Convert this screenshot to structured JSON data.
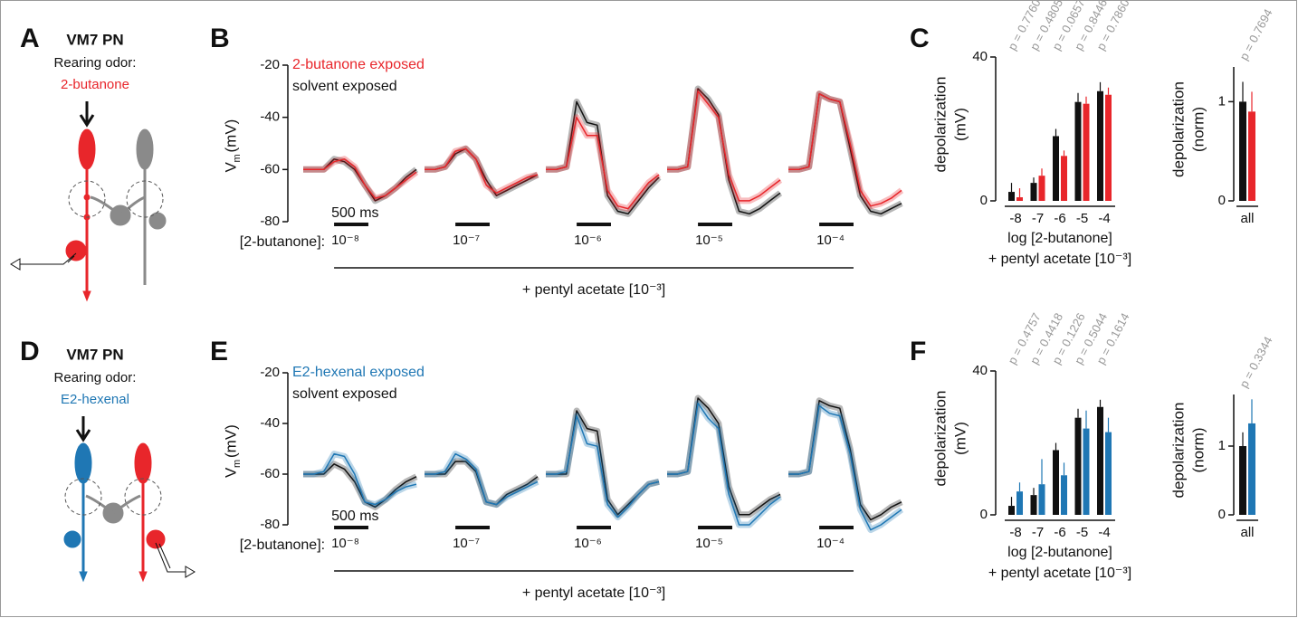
{
  "diagrams": [
    {
      "label": "A",
      "title": "VM7 PN",
      "subtitle": "Rearing odor:",
      "odor": "2-butanone",
      "odor_color": "#e8262b"
    },
    {
      "label": "D",
      "title": "VM7 PN",
      "subtitle": "Rearing odor:",
      "odor": "E2-hexenal",
      "odor_color": "#1f77b4"
    }
  ],
  "chart_data": [
    {
      "type": "trace",
      "panel_label": "B",
      "ylim": [
        -80,
        -20
      ],
      "yticks": [
        -20,
        -40,
        -60,
        -80
      ],
      "ylabel": "V",
      "ylabel_sub": "m",
      "ylabel_unit": "(mV)",
      "x": [
        0,
        150,
        300,
        450,
        600,
        750,
        900,
        1050,
        1200,
        1350,
        1500,
        1650
      ],
      "stimulus": [
        450,
        950
      ],
      "scale_label": "500 ms",
      "condition_label": "[2-butanone]:",
      "categories": [
        "10⁻⁸",
        "10⁻⁷",
        "10⁻⁶",
        "10⁻⁵",
        "10⁻⁴"
      ],
      "background_label": "+ pentyl acetate [10⁻³]",
      "series": [
        {
          "name": "2-butanone exposed",
          "color": "#e8262b",
          "values": [
            [
              -60,
              -60,
              -60,
              -57,
              -56,
              -59,
              -66,
              -71,
              -70,
              -67,
              -64,
              -61
            ],
            [
              -60,
              -60,
              -59,
              -53,
              -52,
              -56,
              -66,
              -69,
              -67,
              -65,
              -63,
              -62
            ],
            [
              -60,
              -60,
              -59,
              -40,
              -47,
              -47,
              -68,
              -74,
              -75,
              -70,
              -65,
              -62
            ],
            [
              -60,
              -60,
              -59,
              -30,
              -35,
              -40,
              -62,
              -72,
              -72,
              -70,
              -67,
              -64
            ],
            [
              -60,
              -60,
              -59,
              -31,
              -33,
              -34,
              -50,
              -68,
              -74,
              -73,
              -71,
              -68
            ]
          ]
        },
        {
          "name": "solvent exposed",
          "color": "#111111",
          "values": [
            [
              -60,
              -60,
              -60,
              -56,
              -57,
              -60,
              -66,
              -72,
              -70,
              -67,
              -63,
              -60
            ],
            [
              -60,
              -60,
              -59,
              -54,
              -52,
              -56,
              -64,
              -70,
              -68,
              -66,
              -64,
              -62
            ],
            [
              -60,
              -60,
              -59,
              -34,
              -42,
              -43,
              -70,
              -76,
              -77,
              -72,
              -67,
              -63
            ],
            [
              -60,
              -60,
              -59,
              -29,
              -33,
              -39,
              -64,
              -76,
              -77,
              -75,
              -72,
              -69
            ],
            [
              -60,
              -60,
              -59,
              -31,
              -33,
              -34,
              -52,
              -70,
              -76,
              -77,
              -75,
              -73
            ]
          ]
        }
      ]
    },
    {
      "type": "bar",
      "panel_label": "C",
      "ylim": [
        0,
        40
      ],
      "yticks": [
        0,
        40
      ],
      "ylabel": [
        "depolarization",
        "(mV)"
      ],
      "xlabel": [
        "log [2-butanone]",
        "+ pentyl acetate [10⁻³]"
      ],
      "categories": [
        "-8",
        "-7",
        "-6",
        "-5",
        "-4"
      ],
      "series": [
        {
          "color": "#111111",
          "values": [
            2.5,
            5,
            18,
            27.5,
            30.5
          ],
          "errors": [
            2.5,
            1.5,
            2,
            2.5,
            2.5
          ]
        },
        {
          "color": "#e8262b",
          "values": [
            1,
            7,
            12.5,
            27,
            29.5
          ],
          "errors": [
            2.5,
            2,
            1.5,
            2,
            2
          ]
        }
      ],
      "annotations": [
        "p = 0.7760",
        "p = 0.4805",
        "p = 0.0657",
        "p = 0.8446",
        "p = 0.7860"
      ]
    },
    {
      "type": "bar",
      "ylim": [
        0,
        1.35
      ],
      "yticks": [
        0,
        1
      ],
      "ylabel": [
        "depolarization",
        "(norm)"
      ],
      "categories": [
        "all"
      ],
      "series": [
        {
          "color": "#111111",
          "values": [
            1.0
          ],
          "errors": [
            0.2
          ]
        },
        {
          "color": "#e8262b",
          "values": [
            0.9
          ],
          "errors": [
            0.2
          ]
        }
      ],
      "annotations": [
        "p = 0.7694"
      ]
    },
    {
      "type": "trace",
      "panel_label": "E",
      "ylim": [
        -80,
        -20
      ],
      "yticks": [
        -20,
        -40,
        -60,
        -80
      ],
      "ylabel": "V",
      "ylabel_sub": "m",
      "ylabel_unit": "(mV)",
      "x": [
        0,
        150,
        300,
        450,
        600,
        750,
        900,
        1050,
        1200,
        1350,
        1500,
        1650
      ],
      "stimulus": [
        450,
        950
      ],
      "scale_label": "500 ms",
      "condition_label": "[2-butanone]:",
      "categories": [
        "10⁻⁸",
        "10⁻⁷",
        "10⁻⁶",
        "10⁻⁵",
        "10⁻⁴"
      ],
      "background_label": "+ pentyl acetate [10⁻³]",
      "series": [
        {
          "name": "E2-hexenal exposed",
          "color": "#1f77b4",
          "values": [
            [
              -60,
              -60,
              -59,
              -52,
              -53,
              -60,
              -71,
              -72,
              -70,
              -67,
              -65,
              -64
            ],
            [
              -60,
              -60,
              -59,
              -52,
              -54,
              -58,
              -71,
              -72,
              -69,
              -67,
              -65,
              -63
            ],
            [
              -60,
              -60,
              -59,
              -37,
              -48,
              -49,
              -72,
              -77,
              -73,
              -68,
              -64,
              -63
            ],
            [
              -60,
              -60,
              -59,
              -32,
              -38,
              -42,
              -68,
              -80,
              -80,
              -76,
              -72,
              -69
            ],
            [
              -60,
              -60,
              -59,
              -33,
              -36,
              -37,
              -52,
              -74,
              -82,
              -80,
              -77,
              -74
            ]
          ]
        },
        {
          "name": "solvent exposed",
          "color": "#111111",
          "values": [
            [
              -60,
              -60,
              -60,
              -56,
              -58,
              -63,
              -71,
              -73,
              -70,
              -66,
              -63,
              -61
            ],
            [
              -60,
              -60,
              -60,
              -55,
              -55,
              -59,
              -71,
              -72,
              -68,
              -66,
              -64,
              -61
            ],
            [
              -60,
              -60,
              -60,
              -35,
              -42,
              -43,
              -70,
              -76,
              -72,
              -68,
              -64,
              -63
            ],
            [
              -60,
              -60,
              -59,
              -30,
              -34,
              -40,
              -65,
              -76,
              -76,
              -73,
              -70,
              -68
            ],
            [
              -60,
              -60,
              -59,
              -31,
              -33,
              -34,
              -50,
              -72,
              -78,
              -76,
              -73,
              -71
            ]
          ]
        }
      ]
    },
    {
      "type": "bar",
      "panel_label": "F",
      "ylim": [
        0,
        40
      ],
      "yticks": [
        0,
        40
      ],
      "ylabel": [
        "depolarization",
        "(mV)"
      ],
      "xlabel": [
        "log [2-butanone]",
        "+ pentyl acetate [10⁻³]"
      ],
      "categories": [
        "-8",
        "-7",
        "-6",
        "-5",
        "-4"
      ],
      "series": [
        {
          "color": "#111111",
          "values": [
            2.5,
            5.5,
            18,
            27,
            30
          ],
          "errors": [
            2.5,
            2,
            2,
            2.5,
            2
          ]
        },
        {
          "color": "#1f77b4",
          "values": [
            6.5,
            8.5,
            11,
            24,
            23
          ],
          "errors": [
            2.5,
            7,
            3.5,
            5,
            4
          ]
        }
      ],
      "annotations": [
        "p = 0.4757",
        "p = 0.4418",
        "p = 0.1226",
        "p = 0.5044",
        "p = 0.1614"
      ]
    },
    {
      "type": "bar",
      "ylim": [
        0,
        1.75
      ],
      "yticks": [
        0,
        1
      ],
      "ylabel": [
        "depolarization",
        "(norm)"
      ],
      "categories": [
        "all"
      ],
      "series": [
        {
          "color": "#111111",
          "values": [
            1.0
          ],
          "errors": [
            0.2
          ]
        },
        {
          "color": "#1f77b4",
          "values": [
            1.33
          ],
          "errors": [
            0.35
          ]
        }
      ],
      "annotations": [
        "p = 0.3344"
      ]
    }
  ]
}
